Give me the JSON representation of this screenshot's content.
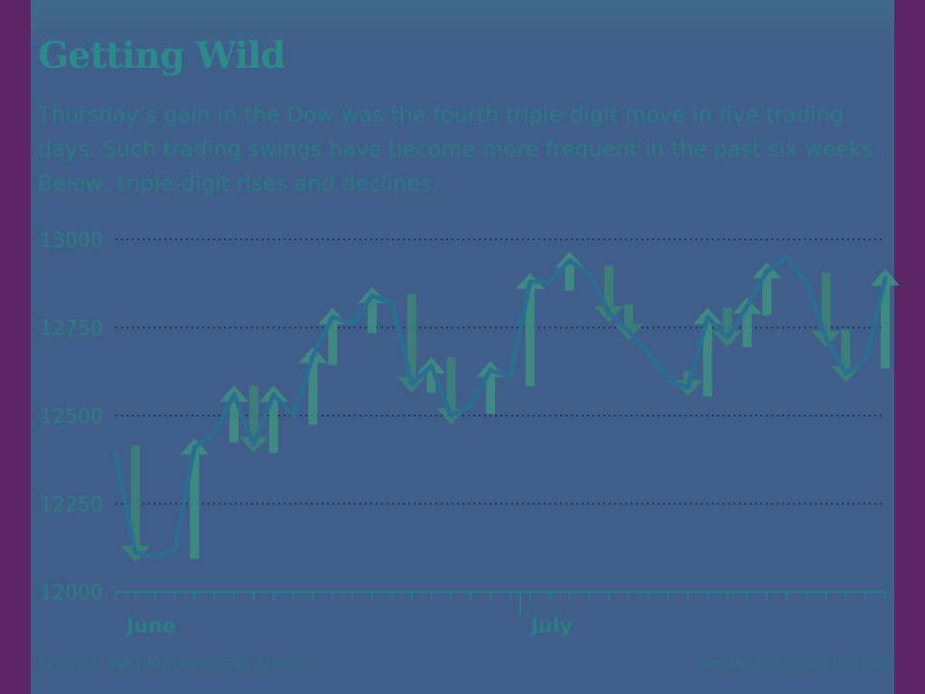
{
  "chart_data": {
    "type": "line",
    "title": "Getting Wild",
    "subtitle": "Thursday’s gain in the Dow was the fourth triple-digit move in five trading days. Such trading swings have become more frequent in the past six weeks. Below, triple-digit rises and declines.",
    "ylim": [
      12000,
      13000
    ],
    "yticks": [
      13000,
      12750,
      12500,
      12250,
      12000
    ],
    "month_labels": [
      "June",
      "July"
    ],
    "series": [
      {
        "values": [
          12390,
          12110,
          12100,
          12120,
          12410,
          12450,
          12560,
          12420,
          12560,
          12500,
          12670,
          12780,
          12760,
          12840,
          12820,
          12590,
          12640,
          12500,
          12530,
          12630,
          12610,
          12880,
          12880,
          12940,
          12900,
          12790,
          12740,
          12680,
          12600,
          12580,
          12780,
          12720,
          12810,
          12910,
          12950,
          12880,
          12720,
          12620,
          12660,
          12890
        ]
      }
    ],
    "triple_digit_moves": {
      "rises": [
        4,
        6,
        8,
        10,
        11,
        13,
        16,
        19,
        21,
        23,
        30,
        32,
        33,
        39
      ],
      "declines": [
        1,
        7,
        15,
        17,
        25,
        26,
        29,
        31,
        36,
        37
      ]
    },
    "grid": true,
    "source": "Source: WSJ Market Data Group",
    "credit": "The Wall Street Journal"
  },
  "colors": {
    "line": "#2a6f92",
    "rise_arrow": "#3f9a80",
    "decline_arrow": "#3c8a74",
    "grid": "#1f2f55",
    "axis": "#2a7f86"
  }
}
